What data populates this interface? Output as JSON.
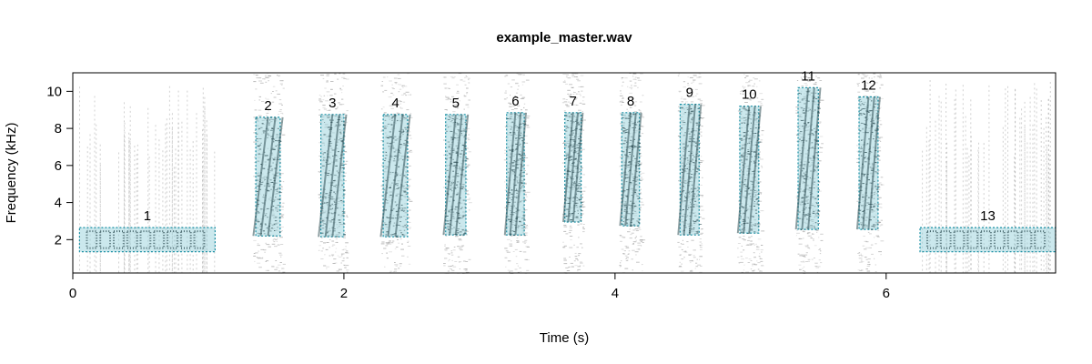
{
  "chart_data": {
    "type": "heatmap",
    "title": "example_master.wav",
    "xlabel": "Time (s)",
    "ylabel": "Frequency (kHz)",
    "xlim": [
      0,
      7.25
    ],
    "ylim": [
      0.2,
      11.0
    ],
    "x_ticks": [
      "0",
      "2",
      "4",
      "6"
    ],
    "y_ticks": [
      "2",
      "4",
      "6",
      "8",
      "10"
    ],
    "selection_color": "#8ccbd6",
    "selection_border_color": "#1a8fa4",
    "spectrogram_color": "#2f4f55",
    "noise_color": "#9a9a9a",
    "selections": [
      {
        "label": "1",
        "start": 0.05,
        "end": 1.05,
        "bottom": 1.35,
        "top": 2.65
      },
      {
        "label": "2",
        "start": 1.35,
        "end": 1.53,
        "bottom": 2.2,
        "top": 8.6
      },
      {
        "label": "3",
        "start": 1.83,
        "end": 2.0,
        "bottom": 2.15,
        "top": 8.75
      },
      {
        "label": "4",
        "start": 2.29,
        "end": 2.47,
        "bottom": 2.15,
        "top": 8.75
      },
      {
        "label": "5",
        "start": 2.75,
        "end": 2.9,
        "bottom": 2.25,
        "top": 8.75
      },
      {
        "label": "6",
        "start": 3.2,
        "end": 3.33,
        "bottom": 2.25,
        "top": 8.85
      },
      {
        "label": "7",
        "start": 3.63,
        "end": 3.75,
        "bottom": 2.95,
        "top": 8.85
      },
      {
        "label": "8",
        "start": 4.05,
        "end": 4.18,
        "bottom": 2.75,
        "top": 8.85
      },
      {
        "label": "9",
        "start": 4.48,
        "end": 4.62,
        "bottom": 2.25,
        "top": 9.3
      },
      {
        "label": "10",
        "start": 4.92,
        "end": 5.06,
        "bottom": 2.35,
        "top": 9.2
      },
      {
        "label": "11",
        "start": 5.35,
        "end": 5.5,
        "bottom": 2.55,
        "top": 10.2
      },
      {
        "label": "12",
        "start": 5.8,
        "end": 5.94,
        "bottom": 2.55,
        "top": 9.7
      },
      {
        "label": "13",
        "start": 6.25,
        "end": 7.25,
        "bottom": 1.35,
        "top": 2.65
      }
    ]
  }
}
